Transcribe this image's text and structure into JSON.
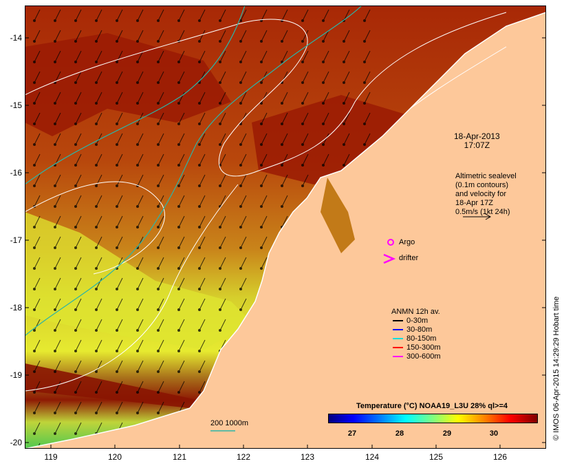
{
  "map": {
    "yticks": [
      "-14",
      "-15",
      "-16",
      "-17",
      "-18",
      "-19",
      "-20"
    ],
    "xticks": [
      "119",
      "120",
      "121",
      "122",
      "123",
      "124",
      "125",
      "126"
    ],
    "date_line1": "18-Apr-2013",
    "date_line2": "17:07Z",
    "altimetry_lines": [
      "Altimetric sealevel",
      "(0.1m contours)",
      "and velocity for",
      "18-Apr 17Z",
      "0.5m/s (1kt 24h)"
    ],
    "argo_label": "Argo",
    "drifter_label": "drifter",
    "anmn_title": "ANMN 12h av.",
    "anmn_legend": [
      {
        "label": "0-30m",
        "color": "#000000"
      },
      {
        "label": "30-80m",
        "color": "#0000ff"
      },
      {
        "label": "80-150m",
        "color": "#00dddd"
      },
      {
        "label": "150-300m",
        "color": "#ff0000"
      },
      {
        "label": "300-600m",
        "color": "#ff00ff"
      }
    ],
    "isobath_label": "200  1000m",
    "colorbar_title": "Temperature (°C) NOAA19_L3U 28% ql>=4",
    "colorbar_ticks": [
      "27",
      "28",
      "29",
      "30"
    ],
    "credit": "© IMOS 06-Apr-2015 14:29:29 Hobart time",
    "colors": {
      "land": "#fdc89a",
      "warm_sea": "#b83a08",
      "deep_sea": "#9a1a04",
      "cool_sea": "#d9e02a",
      "coast_green": "#3fd04a",
      "contour": "#ffffff",
      "isobath": "#2ab5a8"
    }
  }
}
